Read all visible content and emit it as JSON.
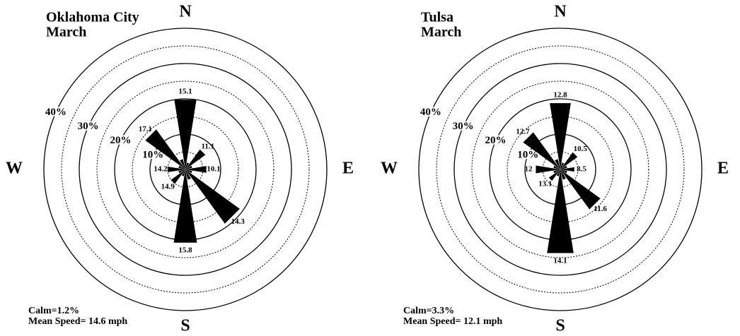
{
  "chart_data": [
    {
      "type": "windrose",
      "title": [
        "Oklahoma City",
        "March"
      ],
      "compass": [
        "N",
        "E",
        "S",
        "W"
      ],
      "directions": [
        "N",
        "NNE",
        "NE",
        "ENE",
        "E",
        "ESE",
        "SE",
        "SSE",
        "S",
        "SSW",
        "SW",
        "WSW",
        "W",
        "WNW",
        "NW",
        "NNW"
      ],
      "values": [
        20,
        2,
        7,
        2,
        6,
        2,
        19,
        3,
        21,
        2,
        5,
        2,
        5,
        2,
        14,
        3
      ],
      "speeds": [
        15.1,
        null,
        11.1,
        null,
        10.1,
        null,
        14.3,
        null,
        15.8,
        null,
        14.9,
        null,
        14.2,
        null,
        17.1,
        null
      ],
      "rlim": [
        0,
        40
      ],
      "rticks": [
        {
          "value": 10,
          "label": "10%"
        },
        {
          "value": 20,
          "label": "20%"
        },
        {
          "value": 30,
          "label": "30%"
        },
        {
          "value": 40,
          "label": "40%"
        }
      ],
      "rminorticks": [
        5,
        15,
        25,
        35
      ],
      "color": "#000000",
      "notes": [
        "Calm=1.2%",
        "Mean Speed= 14.6 mph"
      ]
    },
    {
      "type": "windrose",
      "title": [
        "Tulsa",
        "March"
      ],
      "compass": [
        "N",
        "E",
        "S",
        "W"
      ],
      "directions": [
        "N",
        "NNE",
        "NE",
        "ENE",
        "E",
        "ESE",
        "SE",
        "SSE",
        "S",
        "SSW",
        "SW",
        "WSW",
        "W",
        "WNW",
        "NW",
        "NNW"
      ],
      "values": [
        19,
        2,
        6,
        2,
        4,
        2,
        14,
        3,
        24,
        2,
        4,
        2,
        7,
        2,
        13,
        3
      ],
      "speeds": [
        12.8,
        null,
        10.5,
        null,
        8.5,
        null,
        11.6,
        null,
        14.1,
        null,
        13.1,
        null,
        12.0,
        null,
        12.7,
        null
      ],
      "rlim": [
        0,
        40
      ],
      "rticks": [
        {
          "value": 10,
          "label": "10%"
        },
        {
          "value": 20,
          "label": "20%"
        },
        {
          "value": 30,
          "label": "30%"
        },
        {
          "value": 40,
          "label": "40%"
        }
      ],
      "rminorticks": [
        5,
        15,
        25,
        35
      ],
      "color": "#000000",
      "notes": [
        "Calm=3.3%",
        "Mean Speed= 12.1 mph"
      ]
    }
  ]
}
